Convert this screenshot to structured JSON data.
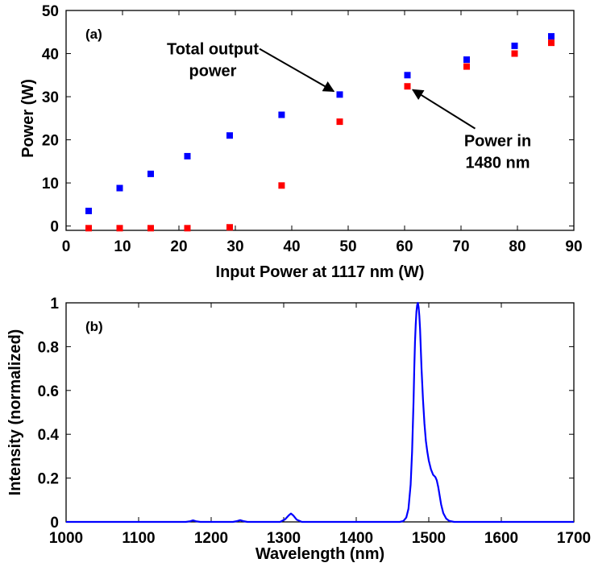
{
  "chart_data": [
    {
      "type": "scatter",
      "panel_label": "(a)",
      "xlabel": "Input Power at 1117 nm (W)",
      "ylabel": "Power (W)",
      "xlim": [
        0,
        90
      ],
      "ylim": [
        -1,
        50
      ],
      "xticks": [
        0,
        10,
        20,
        30,
        40,
        50,
        60,
        70,
        80,
        90
      ],
      "yticks": [
        0,
        10,
        20,
        30,
        40,
        50
      ],
      "grid": false,
      "series": [
        {
          "color": "#0000ff",
          "x": [
            4,
            9.5,
            15,
            21.5,
            29,
            38.2,
            48.5,
            60.5,
            71,
            79.5,
            86
          ],
          "y": [
            3.5,
            8.8,
            12.1,
            16.2,
            21,
            25.8,
            30.5,
            35,
            38.6,
            41.8,
            44
          ]
        },
        {
          "color": "#ff0000",
          "x": [
            4,
            9.5,
            15,
            21.5,
            29,
            38.2,
            48.5,
            60.5,
            71,
            79.5,
            86
          ],
          "y": [
            -0.5,
            -0.5,
            -0.5,
            -0.5,
            -0.3,
            9.4,
            24.2,
            32.4,
            37,
            40,
            42.5
          ]
        }
      ],
      "annotations": [
        {
          "lines": [
            "Total output",
            "power"
          ],
          "x": 26,
          "y": 39.8,
          "arrow_to": [
            48.3,
            30.6
          ]
        },
        {
          "lines": [
            "Power in",
            "1480 nm"
          ],
          "x": 76.5,
          "y": 18.5,
          "arrow_to": [
            60.6,
            32.3
          ]
        }
      ]
    },
    {
      "type": "line",
      "panel_label": "(b)",
      "xlabel": "Wavelength (nm)",
      "ylabel": "Intensity (normalized)",
      "xlim": [
        1000,
        1700
      ],
      "ylim": [
        0,
        1
      ],
      "xticks": [
        1000,
        1100,
        1200,
        1300,
        1400,
        1500,
        1600,
        1700
      ],
      "yticks": [
        0,
        0.2,
        0.4,
        0.6,
        0.8,
        1
      ],
      "ytick_labels": [
        "0",
        "0.2",
        "0.4",
        "0.6",
        "0.8",
        "1"
      ],
      "grid": false,
      "color": "#0000ff",
      "x": [
        1000,
        1165,
        1171,
        1175,
        1179,
        1185,
        1230,
        1236,
        1240,
        1244,
        1250,
        1295,
        1302,
        1307,
        1310,
        1313,
        1318,
        1325,
        1460,
        1465,
        1469,
        1472,
        1475,
        1477,
        1479,
        1480,
        1481,
        1482,
        1483,
        1484,
        1485,
        1486,
        1487,
        1488,
        1490,
        1492,
        1494,
        1496,
        1498,
        1500,
        1503,
        1506,
        1509,
        1511,
        1513,
        1515,
        1517,
        1520,
        1524,
        1528,
        1535,
        1700
      ],
      "y": [
        0,
        0,
        0.003,
        0.007,
        0.003,
        0,
        0,
        0.004,
        0.008,
        0.004,
        0,
        0,
        0.012,
        0.03,
        0.038,
        0.03,
        0.01,
        0,
        0,
        0.004,
        0.02,
        0.06,
        0.17,
        0.32,
        0.55,
        0.7,
        0.82,
        0.9,
        0.96,
        0.99,
        1,
        0.98,
        0.94,
        0.88,
        0.7,
        0.56,
        0.45,
        0.37,
        0.32,
        0.28,
        0.24,
        0.215,
        0.205,
        0.19,
        0.16,
        0.12,
        0.08,
        0.04,
        0.015,
        0.005,
        0,
        0
      ]
    }
  ]
}
